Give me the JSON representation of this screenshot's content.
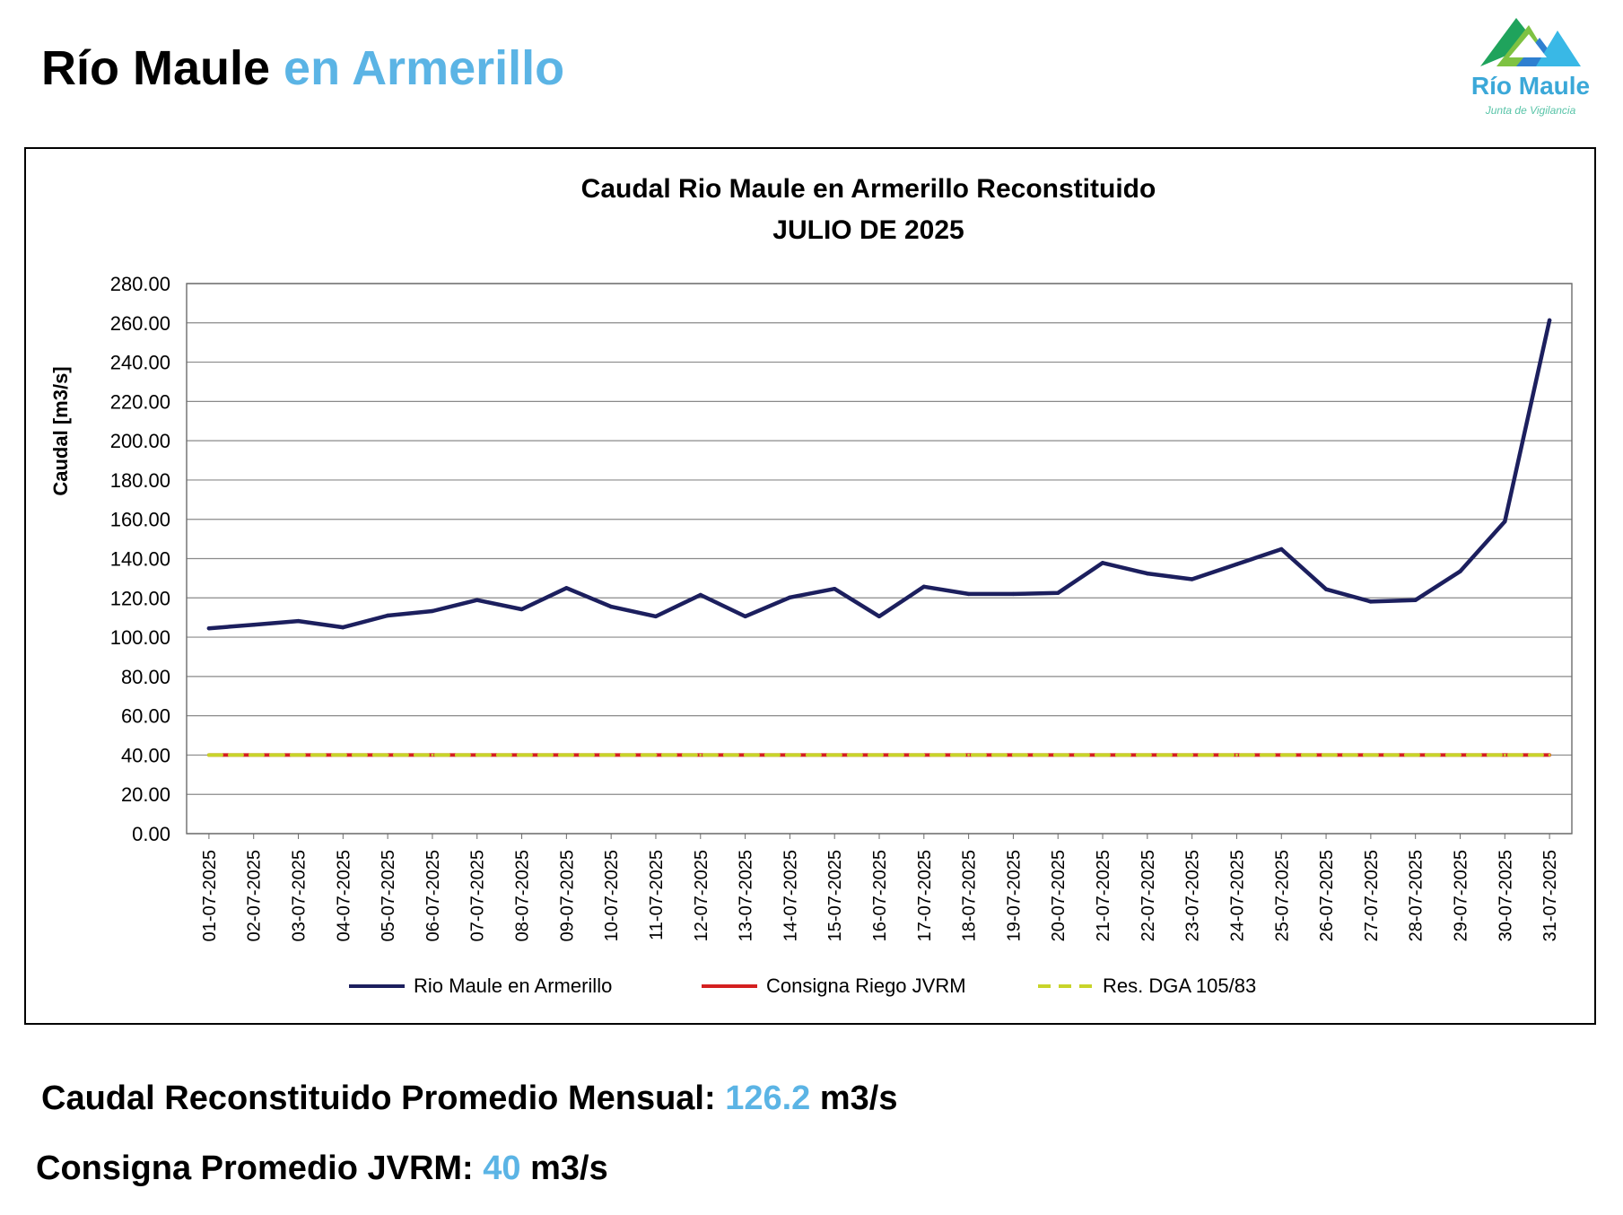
{
  "header": {
    "title_main": "Río Maule",
    "title_accent": "en Armerillo"
  },
  "logo": {
    "name": "Río Maule",
    "tagline": "Junta de Vigilancia",
    "colors": [
      "#1fa35c",
      "#7ec242",
      "#2e7fd0",
      "#39b8e6"
    ]
  },
  "chart_data": {
    "type": "line",
    "title": "Caudal Rio Maule en Armerillo Reconstituido",
    "subtitle": "JULIO DE 2025",
    "xlabel": "",
    "ylabel": "Caudal [m3/s]",
    "ylim": [
      0,
      280
    ],
    "y_ticks": [
      "0.00",
      "20.00",
      "40.00",
      "60.00",
      "80.00",
      "100.00",
      "120.00",
      "140.00",
      "160.00",
      "180.00",
      "200.00",
      "220.00",
      "240.00",
      "260.00",
      "280.00"
    ],
    "grid": true,
    "legend_position": "bottom",
    "categories": [
      "01-07-2025",
      "02-07-2025",
      "03-07-2025",
      "04-07-2025",
      "05-07-2025",
      "06-07-2025",
      "07-07-2025",
      "08-07-2025",
      "09-07-2025",
      "10-07-2025",
      "11-07-2025",
      "12-07-2025",
      "13-07-2025",
      "14-07-2025",
      "15-07-2025",
      "16-07-2025",
      "17-07-2025",
      "18-07-2025",
      "19-07-2025",
      "20-07-2025",
      "21-07-2025",
      "22-07-2025",
      "23-07-2025",
      "24-07-2025",
      "25-07-2025",
      "26-07-2025",
      "27-07-2025",
      "28-07-2025",
      "29-07-2025",
      "30-07-2025",
      "31-07-2025"
    ],
    "series": [
      {
        "name": "Rio Maule en Armerillo",
        "color": "#1c1f5e",
        "style": "solid",
        "values": [
          104.5,
          106.3,
          108.2,
          105.0,
          111.0,
          113.3,
          118.9,
          114.2,
          125.0,
          115.5,
          110.6,
          121.5,
          110.6,
          120.2,
          124.6,
          110.6,
          125.7,
          122.0,
          122.0,
          122.5,
          137.8,
          132.4,
          129.5,
          137.1,
          144.8,
          124.4,
          118.1,
          118.9,
          133.5,
          158.9,
          261.3
        ]
      },
      {
        "name": "Consigna Riego JVRM",
        "color": "#d42020",
        "style": "solid",
        "values": [
          40,
          40,
          40,
          40,
          40,
          40,
          40,
          40,
          40,
          40,
          40,
          40,
          40,
          40,
          40,
          40,
          40,
          40,
          40,
          40,
          40,
          40,
          40,
          40,
          40,
          40,
          40,
          40,
          40,
          40,
          40
        ]
      },
      {
        "name": "Res. DGA 105/83",
        "color": "#c8d42a",
        "style": "dashed",
        "values": [
          40,
          40,
          40,
          40,
          40,
          40,
          40,
          40,
          40,
          40,
          40,
          40,
          40,
          40,
          40,
          40,
          40,
          40,
          40,
          40,
          40,
          40,
          40,
          40,
          40,
          40,
          40,
          40,
          40,
          40,
          40
        ]
      }
    ]
  },
  "summary": {
    "average_label": "Caudal Reconstituido Promedio Mensual:",
    "average_value": "126.2",
    "average_unit": "m3/s",
    "consigna_label": "Consigna Promedio JVRM:",
    "consigna_value": "40",
    "consigna_unit": "m3/s"
  }
}
